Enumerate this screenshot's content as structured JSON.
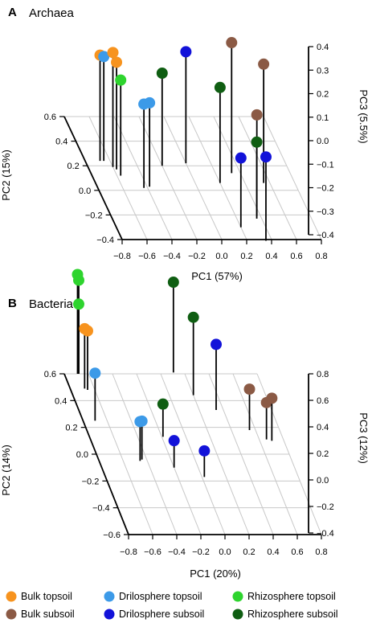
{
  "legend": {
    "items": [
      {
        "label": "Bulk topsoil",
        "color": "#f7931e"
      },
      {
        "label": "Drilosphere topsoil",
        "color": "#3c9ae8"
      },
      {
        "label": "Rhizosphere topsoil",
        "color": "#2ed42e"
      },
      {
        "label": "Bulk subsoil",
        "color": "#8b5a45"
      },
      {
        "label": "Drilosphere subsoil",
        "color": "#1212d9"
      },
      {
        "label": "Rhizosphere subsoil",
        "color": "#0f5e12"
      }
    ]
  },
  "chart_data": [
    {
      "type": "scatter",
      "panel": "A",
      "title": "Archaea",
      "xlabel": "PC1 (57%)",
      "ylabel": "PC2 (15%)",
      "zlabel": "PC3 (5.5%)",
      "xlim": [
        -0.8,
        0.8
      ],
      "ylim": [
        -0.4,
        0.6
      ],
      "zlim": [
        -0.4,
        0.4
      ],
      "x_ticks": [
        "−0.8",
        "−0.6",
        "−0.4",
        "−0.2",
        "0.0",
        "0.2",
        "0.4",
        "0.6",
        "0.8"
      ],
      "y_ticks": [
        "−0.4",
        "−0.2",
        "0.0",
        "0.2",
        "0.4",
        "0.6"
      ],
      "z_ticks": [
        "−0.4",
        "−0.3",
        "−0.2",
        "−0.1",
        "0.0",
        "0.1",
        "0.2",
        "0.3",
        "0.4"
      ],
      "grid": true,
      "series": [
        {
          "name": "Bulk topsoil",
          "points": [
            [
              -0.6,
              0.19,
              0.33
            ],
            [
              -0.58,
              0.17,
              0.28
            ],
            [
              -0.68,
              0.24,
              0.27
            ]
          ]
        },
        {
          "name": "Drilosphere topsoil",
          "points": [
            [
              -0.65,
              0.24,
              0.26
            ],
            [
              -0.43,
              0.02,
              0.12
            ],
            [
              -0.38,
              0.03,
              0.12
            ]
          ]
        },
        {
          "name": "Rhizosphere topsoil",
          "points": [
            [
              -0.57,
              0.12,
              0.2
            ]
          ]
        },
        {
          "name": "Bulk subsoil",
          "points": [
            [
              0.33,
              0.14,
              0.44
            ],
            [
              0.55,
              0.06,
              0.36
            ],
            [
              0.37,
              -0.21,
              0.24
            ]
          ]
        },
        {
          "name": "Drilosphere subsoil",
          "points": [
            [
              0.0,
              0.22,
              0.31
            ],
            [
              0.2,
              -0.3,
              0.02
            ],
            [
              0.35,
              -0.41,
              0.12
            ]
          ]
        },
        {
          "name": "Rhizosphere subsoil",
          "points": [
            [
              -0.2,
              0.2,
              0.18
            ],
            [
              0.2,
              0.06,
              0.2
            ],
            [
              0.36,
              -0.23,
              0.07
            ]
          ]
        }
      ]
    },
    {
      "type": "scatter",
      "panel": "B",
      "title": "Bacteria",
      "xlabel": "PC1 (20%)",
      "ylabel": "PC2 (14%)",
      "zlabel": "PC3 (12%)",
      "xlim": [
        -0.8,
        0.8
      ],
      "ylim": [
        -0.6,
        0.6
      ],
      "zlim": [
        -0.4,
        0.8
      ],
      "x_ticks": [
        "−0.8",
        "−0.6",
        "−0.4",
        "−0.2",
        "0.0",
        "0.2",
        "0.4",
        "0.6",
        "0.8"
      ],
      "y_ticks": [
        "−0.6",
        "−0.4",
        "−0.2",
        "0.0",
        "0.2",
        "0.4",
        "0.6"
      ],
      "z_ticks": [
        "−0.4",
        "−0.2",
        "0.0",
        "0.2",
        "0.4",
        "0.6",
        "0.8"
      ],
      "grid": true,
      "series": [
        {
          "name": "Bulk topsoil",
          "points": [
            [
              -0.68,
              0.49,
              0.23
            ],
            [
              -0.66,
              0.48,
              0.22
            ]
          ]
        },
        {
          "name": "Drilosphere topsoil",
          "points": [
            [
              -0.7,
              0.25,
              0.08
            ],
            [
              -0.46,
              -0.05,
              -0.02
            ],
            [
              -0.44,
              -0.04,
              -0.03
            ]
          ]
        },
        {
          "name": "Rhizosphere topsoil",
          "points": [
            [
              -0.69,
              0.6,
              0.71
            ],
            [
              -0.68,
              0.6,
              0.64
            ],
            [
              -0.68,
              0.6,
              0.35
            ]
          ]
        },
        {
          "name": "Bulk subsoil",
          "points": [
            [
              0.55,
              0.18,
              0.0
            ],
            [
              0.7,
              0.1,
              0.02
            ],
            [
              0.66,
              0.11,
              -0.05
            ]
          ]
        },
        {
          "name": "Drilosphere subsoil",
          "points": [
            [
              0.34,
              0.33,
              0.3
            ],
            [
              -0.2,
              -0.1,
              -0.17
            ],
            [
              0.02,
              -0.17,
              -0.18
            ]
          ]
        },
        {
          "name": "Rhizosphere subsoil",
          "points": [
            [
              0.11,
              0.61,
              0.6
            ],
            [
              0.2,
              0.44,
              0.45
            ],
            [
              -0.19,
              0.13,
              -0.1
            ]
          ]
        }
      ]
    }
  ]
}
